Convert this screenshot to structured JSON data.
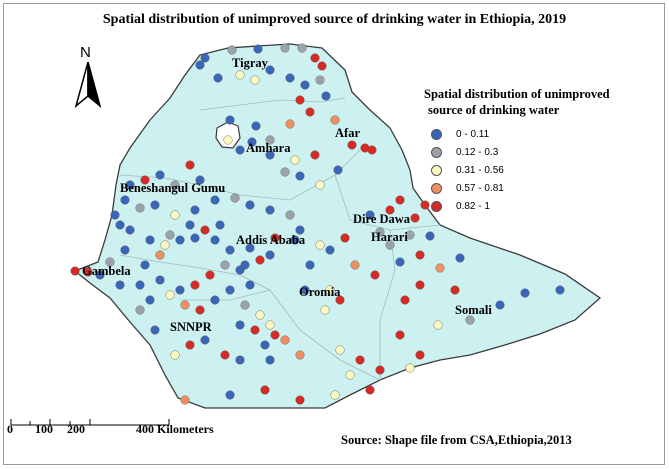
{
  "title": "Spatial distribution of unimproved source of drinking water in Ethiopia, 2019",
  "north_label": "N",
  "legend": {
    "title_line1": "Spatial distribution of unimproved",
    "title_line2": "source of drinking water",
    "classes": [
      {
        "label": "0 - 0.11",
        "color": "#3a66b8"
      },
      {
        "label": "0.12 - 0.3",
        "color": "#9aa3ab"
      },
      {
        "label": "0.31 - 0.56",
        "color": "#fcf8bf"
      },
      {
        "label": "0.57 - 0.81",
        "color": "#ef9063"
      },
      {
        "label": "0.82 - 1",
        "color": "#d62a26"
      }
    ]
  },
  "regions": {
    "tigray": "Tigray",
    "afar": "Afar",
    "amhara": "Amhara",
    "beneshangul": "Beneshangul Gumu",
    "dire_dawa": "Dire Dawa",
    "harari": "Harari",
    "addis": "Addis Ababa",
    "gambela": "Gambela",
    "oromia": "Oromia",
    "snnpr": "SNNPR",
    "somali": "Somali"
  },
  "scale": {
    "ticks": [
      "0",
      "100",
      "200",
      "400 Kilometers"
    ]
  },
  "source": "Source: Shape file from CSA,Ethiopia,2013",
  "colors": {
    "land": "#cdf0f0",
    "border": "#3b3b3b"
  }
}
